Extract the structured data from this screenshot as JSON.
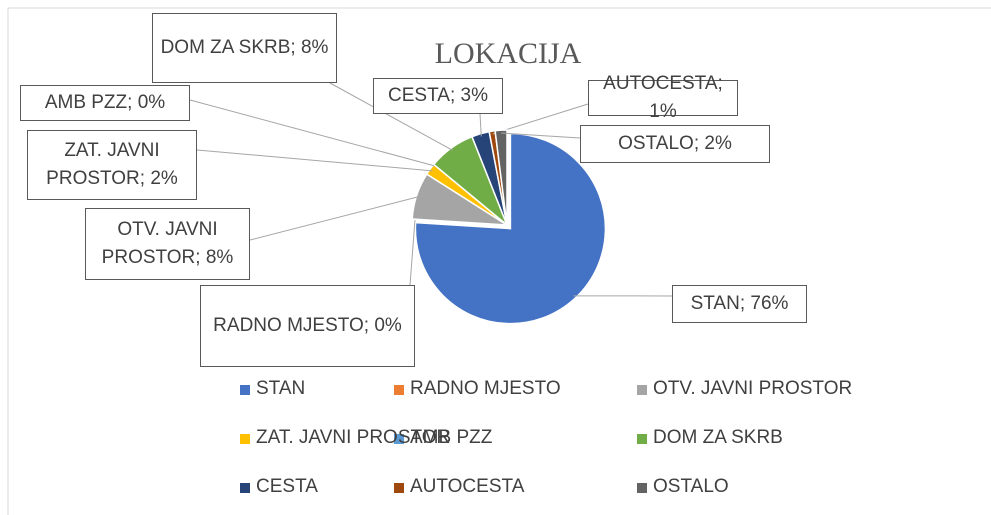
{
  "chart_data": {
    "type": "pie",
    "title": "LOKACIJA",
    "categories": [
      "STAN",
      "RADNO MJESTO",
      "OTV. JAVNI PROSTOR",
      "ZAT. JAVNI PROSTOR",
      "AMB PZZ",
      "DOM ZA SKRB",
      "CESTA",
      "AUTOCESTA",
      "OSTALO"
    ],
    "values": [
      76,
      0,
      8,
      2,
      0,
      8,
      3,
      1,
      2
    ],
    "value_labels": [
      "STAN; 76%",
      "RADNO MJESTO; 0%",
      "OTV. JAVNI PROSTOR; 8%",
      "ZAT. JAVNI PROSTOR; 2%",
      "AMB PZZ; 0%",
      "DOM ZA SKRB; 8%",
      "CESTA; 3%",
      "AUTOCESTA; 1%",
      "OSTALO; 2%"
    ],
    "colors": [
      "#4472c4",
      "#ed7d31",
      "#a5a5a5",
      "#ffc000",
      "#5b9bd5",
      "#70ad47",
      "#264478",
      "#9e480e",
      "#636363"
    ],
    "legend": "bottom"
  }
}
